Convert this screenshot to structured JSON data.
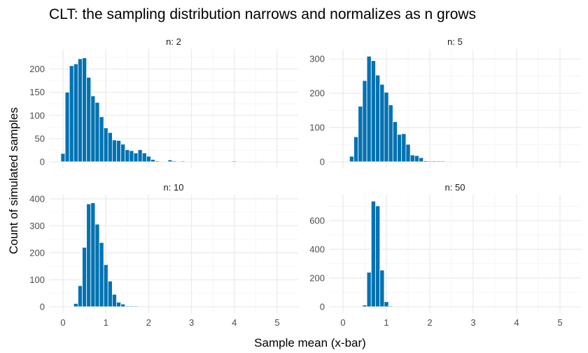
{
  "chart_data": {
    "type": "bar",
    "subtype": "faceted-histogram",
    "title": "CLT: the sampling distribution narrows and normalizes as n grows",
    "xlabel": "Sample mean (x-bar)",
    "ylabel": "Count of simulated samples",
    "bar_color": "#0072B2",
    "grid": true,
    "bin_width": 0.1,
    "x_ticks": [
      0,
      1,
      2,
      3,
      4,
      5
    ],
    "xlim": [
      -0.2,
      5.45
    ],
    "facets": [
      {
        "label": "n: 2",
        "ylim": [
          0,
          240
        ],
        "y_ticks": [
          0,
          50,
          100,
          150,
          200
        ],
        "x": [
          0.0,
          0.1,
          0.2,
          0.3,
          0.4,
          0.5,
          0.6,
          0.7,
          0.8,
          0.9,
          1.0,
          1.1,
          1.2,
          1.3,
          1.4,
          1.5,
          1.6,
          1.7,
          1.8,
          1.9,
          2.0,
          2.1,
          2.2,
          2.3,
          2.4,
          2.5,
          2.6,
          2.7,
          2.8,
          2.9,
          3.0,
          3.1,
          3.2,
          3.3,
          3.4,
          3.5,
          3.6,
          3.7,
          3.8,
          3.9,
          4.0
        ],
        "values": [
          18,
          150,
          207,
          211,
          222,
          224,
          182,
          142,
          128,
          97,
          73,
          63,
          47,
          46,
          38,
          26,
          24,
          19,
          26,
          19,
          12,
          5,
          2,
          0,
          0,
          4,
          2,
          0,
          1,
          0,
          0,
          0,
          0,
          0,
          0,
          0,
          0,
          0,
          0,
          0,
          1
        ]
      },
      {
        "label": "n: 5",
        "ylim": [
          0,
          325
        ],
        "y_ticks": [
          0,
          100,
          200,
          300
        ],
        "x": [
          0.2,
          0.3,
          0.4,
          0.5,
          0.6,
          0.7,
          0.8,
          0.9,
          1.0,
          1.1,
          1.2,
          1.3,
          1.4,
          1.5,
          1.6,
          1.7,
          1.8,
          1.9,
          2.0,
          2.1,
          2.2,
          2.3
        ],
        "values": [
          16,
          73,
          162,
          237,
          308,
          295,
          253,
          226,
          203,
          166,
          117,
          80,
          82,
          51,
          20,
          18,
          12,
          3,
          2,
          1,
          1,
          1
        ]
      },
      {
        "label": "n: 10",
        "ylim": [
          0,
          410
        ],
        "y_ticks": [
          0,
          100,
          200,
          300,
          400
        ],
        "x": [
          0.3,
          0.4,
          0.5,
          0.6,
          0.7,
          0.8,
          0.9,
          1.0,
          1.1,
          1.2,
          1.3,
          1.4,
          1.5,
          1.6,
          1.7
        ],
        "values": [
          12,
          78,
          220,
          381,
          385,
          306,
          238,
          156,
          95,
          46,
          17,
          10,
          3,
          1,
          1
        ]
      },
      {
        "label": "n: 50",
        "ylim": [
          0,
          770
        ],
        "y_ticks": [
          0,
          200,
          400,
          600
        ],
        "x": [
          0.5,
          0.6,
          0.7,
          0.8,
          0.9,
          1.0,
          1.1,
          1.2
        ],
        "values": [
          12,
          240,
          735,
          702,
          255,
          35,
          2,
          0
        ]
      }
    ]
  }
}
